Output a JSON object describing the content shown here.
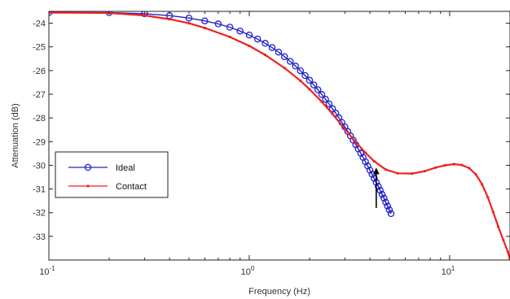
{
  "chart_data": {
    "type": "line",
    "xlabel": "Frequency (Hz)",
    "ylabel": "Attenuation (dB)",
    "xscale": "log",
    "xlim": [
      0.1,
      20
    ],
    "ylim": [
      -34,
      -23.5
    ],
    "grid": false,
    "legend_position": "center-left",
    "x_ticks": [
      {
        "value": 0.1,
        "base": "10",
        "exp": "-1"
      },
      {
        "value": 1,
        "base": "10",
        "exp": "0"
      },
      {
        "value": 10,
        "base": "10",
        "exp": "1"
      }
    ],
    "y_ticks": [
      -24,
      -25,
      -26,
      -27,
      -28,
      -29,
      -30,
      -31,
      -32,
      -33
    ],
    "series": [
      {
        "name": "Ideal",
        "color": "#2222cc",
        "marker": "circle",
        "x": [
          0.1,
          0.2,
          0.3,
          0.4,
          0.5,
          0.6,
          0.7,
          0.8,
          0.9,
          1.0,
          1.1,
          1.2,
          1.3,
          1.4,
          1.5,
          1.6,
          1.7,
          1.8,
          1.9,
          2.0,
          2.1,
          2.2,
          2.3,
          2.4,
          2.5,
          2.6,
          2.7,
          2.8,
          2.9,
          3.0,
          3.1,
          3.2,
          3.3,
          3.4,
          3.5,
          3.6,
          3.7,
          3.8,
          3.9,
          4.0,
          4.1,
          4.2,
          4.3,
          4.4,
          4.5,
          4.6,
          4.7,
          4.8,
          4.9,
          5.0,
          5.1
        ],
        "y": [
          -23.55,
          -23.55,
          -23.6,
          -23.68,
          -23.78,
          -23.9,
          -24.03,
          -24.17,
          -24.33,
          -24.5,
          -24.67,
          -24.85,
          -25.03,
          -25.22,
          -25.41,
          -25.61,
          -25.81,
          -26.01,
          -26.21,
          -26.41,
          -26.61,
          -26.81,
          -27.01,
          -27.21,
          -27.41,
          -27.61,
          -27.8,
          -27.99,
          -28.19,
          -28.38,
          -28.57,
          -28.76,
          -28.94,
          -29.13,
          -29.31,
          -29.49,
          -29.67,
          -29.85,
          -30.03,
          -30.21,
          -30.38,
          -30.55,
          -30.72,
          -30.89,
          -31.06,
          -31.23,
          -31.39,
          -31.56,
          -31.72,
          -31.88,
          -32.04
        ]
      },
      {
        "name": "Contact",
        "color": "#ee2222",
        "marker": "dot",
        "x": [
          0.1,
          0.2,
          0.3,
          0.4,
          0.5,
          0.6,
          0.8,
          1.0,
          1.2,
          1.5,
          1.8,
          2.0,
          2.3,
          2.6,
          3.0,
          3.4,
          3.8,
          4.2,
          4.8,
          5.5,
          6.5,
          7.5,
          8.5,
          9.5,
          10.5,
          11.5,
          12.5,
          13.5,
          14.5,
          15.5,
          16.5,
          17.5,
          18.5,
          19.5,
          20
        ],
        "y": [
          -23.55,
          -23.57,
          -23.67,
          -23.83,
          -24.0,
          -24.2,
          -24.58,
          -24.96,
          -25.34,
          -25.89,
          -26.43,
          -26.79,
          -27.32,
          -27.83,
          -28.47,
          -29.02,
          -29.47,
          -29.83,
          -30.18,
          -30.34,
          -30.35,
          -30.25,
          -30.1,
          -30.0,
          -29.95,
          -29.99,
          -30.12,
          -30.38,
          -30.8,
          -31.35,
          -31.98,
          -32.6,
          -33.15,
          -33.65,
          -34.0
        ]
      }
    ],
    "annotations": [
      {
        "type": "arrow",
        "x": 4.3,
        "y_start": -31.8,
        "y_end": -30.1,
        "color": "#000000"
      }
    ]
  }
}
